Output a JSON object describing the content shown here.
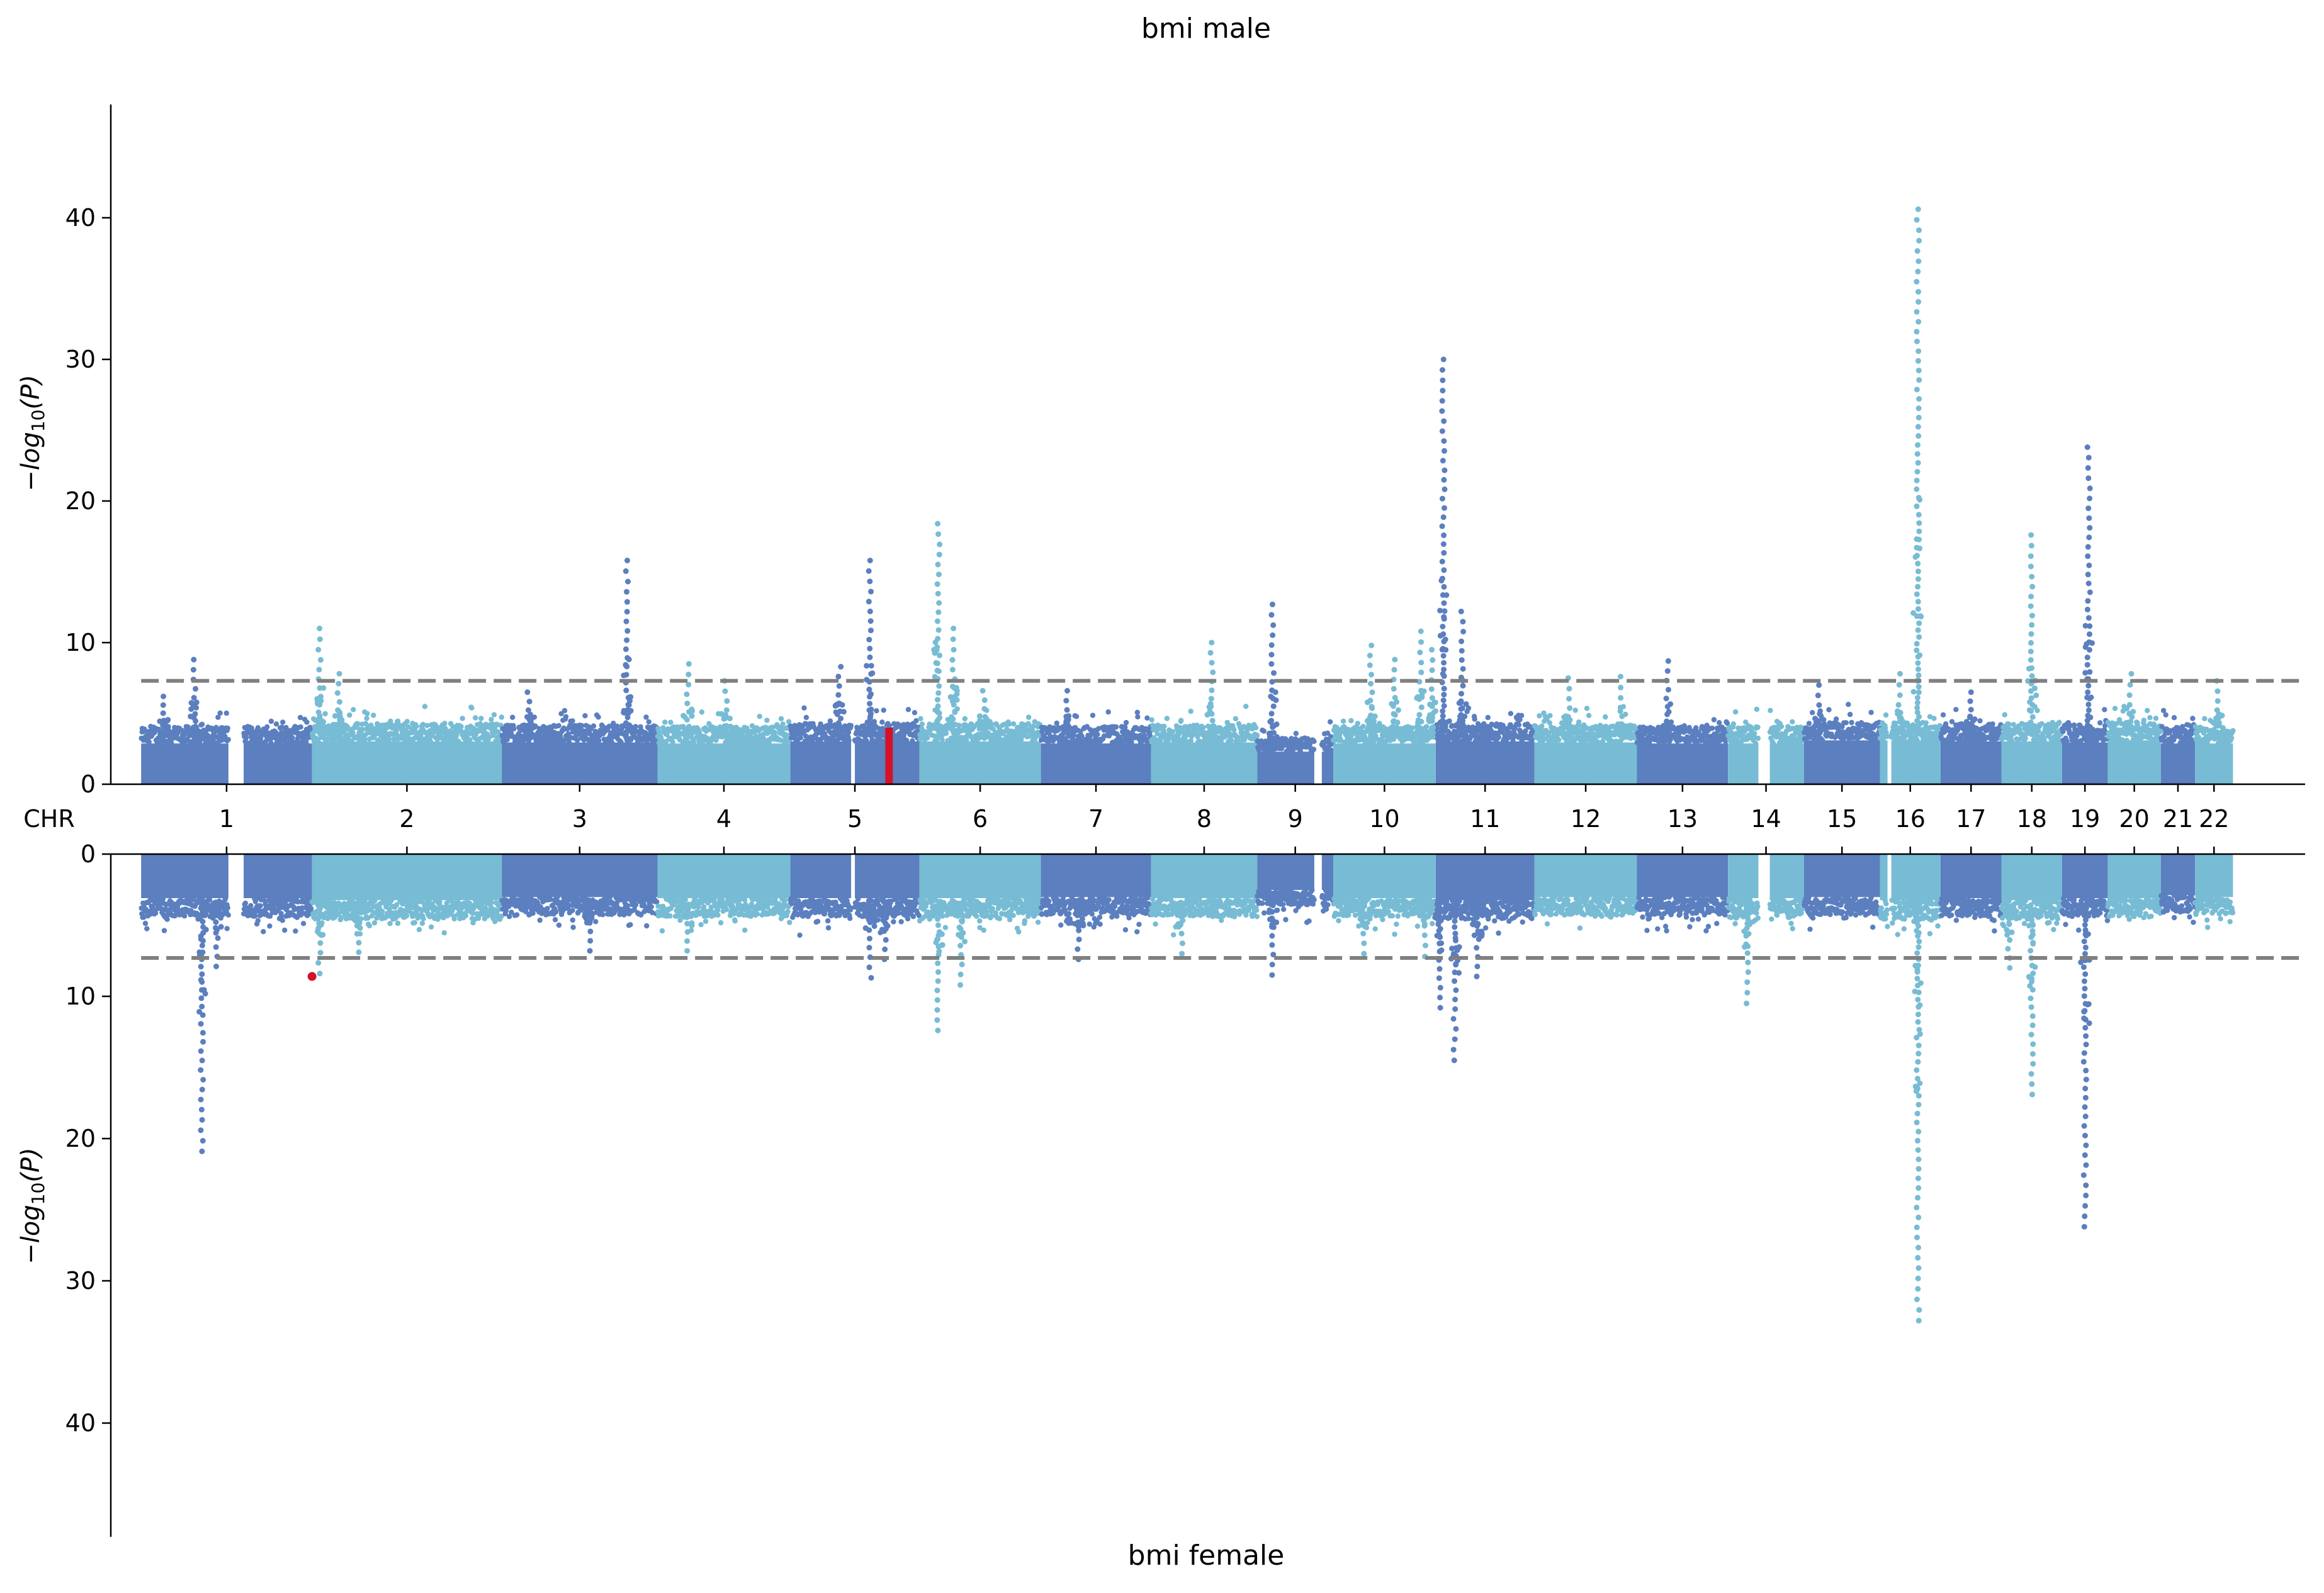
{
  "chart_data": {
    "type": "scatter",
    "title": "bmi male",
    "bottom_title": "bmi female",
    "xlabel": "CHR",
    "ylabel": "−log10(P)",
    "ylim": [
      0,
      48
    ],
    "yticks": [
      0,
      10,
      20,
      30,
      40
    ],
    "threshold": 7.3,
    "threshold_style": "dashed",
    "grid": false,
    "legend": "none",
    "colors": {
      "dark": "#5b7fbf",
      "light": "#77bcd4",
      "highlight": "#d3122a",
      "threshold": "#808080"
    },
    "chromosomes": [
      "1",
      "2",
      "3",
      "4",
      "5",
      "6",
      "7",
      "8",
      "9",
      "10",
      "11",
      "12",
      "13",
      "14",
      "15",
      "16",
      "17",
      "18",
      "19",
      "20",
      "21",
      "22"
    ],
    "chrom_spans": [
      [
        0.4,
        2.65
      ],
      [
        2.65,
        5.15
      ],
      [
        5.15,
        7.2
      ],
      [
        7.2,
        8.95
      ],
      [
        8.95,
        10.65
      ],
      [
        10.65,
        12.25
      ],
      [
        12.25,
        13.7
      ],
      [
        13.7,
        15.1
      ],
      [
        15.1,
        16.1
      ],
      [
        16.1,
        17.45
      ],
      [
        17.45,
        18.75
      ],
      [
        18.75,
        20.1
      ],
      [
        20.1,
        21.3
      ],
      [
        21.3,
        22.3
      ],
      [
        22.3,
        23.3
      ],
      [
        23.3,
        24.1
      ],
      [
        24.1,
        24.9
      ],
      [
        24.9,
        25.7
      ],
      [
        25.7,
        26.3
      ],
      [
        26.3,
        27.0
      ],
      [
        27.0,
        27.45
      ],
      [
        27.45,
        27.95
      ]
    ],
    "chrom_gaps": [
      [
        1.55,
        1.75
      ],
      [
        9.75,
        9.8
      ],
      [
        15.85,
        15.95
      ],
      [
        21.7,
        21.85
      ],
      [
        23.4,
        23.45
      ]
    ],
    "baseline": {
      "top": [
        4.0,
        4.2,
        4.1,
        4.0,
        4.2,
        4.2,
        4.0,
        4.1,
        3.2,
        4.0,
        4.2,
        4.1,
        4.0,
        4.0,
        4.3,
        4.3,
        4.2,
        4.2,
        4.1,
        4.3,
        4.0,
        4.0
      ],
      "bottom": [
        4.3,
        4.5,
        4.2,
        4.3,
        4.3,
        4.3,
        4.2,
        4.3,
        3.5,
        4.3,
        4.5,
        4.2,
        4.2,
        4.3,
        4.2,
        4.5,
        4.3,
        4.5,
        4.3,
        4.3,
        4.0,
        4.2
      ]
    },
    "top_peaks": [
      {
        "chr": "1",
        "x": 1.1,
        "y": 8.8
      },
      {
        "chr": "1",
        "x": 0.7,
        "y": 6.2
      },
      {
        "chr": "2",
        "x": 2.75,
        "y": 11.0
      },
      {
        "chr": "2",
        "x": 3.0,
        "y": 7.8
      },
      {
        "chr": "3",
        "x": 5.5,
        "y": 6.5
      },
      {
        "chr": "3",
        "x": 6.8,
        "y": 15.8
      },
      {
        "chr": "4",
        "x": 7.6,
        "y": 8.5
      },
      {
        "chr": "4",
        "x": 8.1,
        "y": 7.3
      },
      {
        "chr": "5",
        "x": 9.6,
        "y": 8.3
      },
      {
        "chr": "5",
        "x": 10.0,
        "y": 15.8
      },
      {
        "chr": "6",
        "x": 10.9,
        "y": 18.4
      },
      {
        "chr": "6",
        "x": 11.1,
        "y": 11.0
      },
      {
        "chr": "6",
        "x": 11.5,
        "y": 6.6
      },
      {
        "chr": "7",
        "x": 12.6,
        "y": 6.6
      },
      {
        "chr": "8",
        "x": 14.5,
        "y": 10.0
      },
      {
        "chr": "9",
        "x": 15.3,
        "y": 12.7
      },
      {
        "chr": "10",
        "x": 16.6,
        "y": 9.8
      },
      {
        "chr": "10",
        "x": 16.9,
        "y": 8.8
      },
      {
        "chr": "10",
        "x": 17.25,
        "y": 10.8
      },
      {
        "chr": "10",
        "x": 17.4,
        "y": 9.5
      },
      {
        "chr": "11",
        "x": 17.55,
        "y": 30.0
      },
      {
        "chr": "11",
        "x": 17.8,
        "y": 12.2
      },
      {
        "chr": "12",
        "x": 19.2,
        "y": 7.5
      },
      {
        "chr": "12",
        "x": 19.9,
        "y": 7.6
      },
      {
        "chr": "13",
        "x": 20.5,
        "y": 8.7
      },
      {
        "chr": "15",
        "x": 22.5,
        "y": 7.0
      },
      {
        "chr": "16",
        "x": 23.55,
        "y": 7.8
      },
      {
        "chr": "16",
        "x": 23.8,
        "y": 40.6
      },
      {
        "chr": "17",
        "x": 24.5,
        "y": 6.5
      },
      {
        "chr": "18",
        "x": 25.3,
        "y": 17.6
      },
      {
        "chr": "19",
        "x": 26.05,
        "y": 23.8
      },
      {
        "chr": "20",
        "x": 26.6,
        "y": 7.8
      },
      {
        "chr": "22",
        "x": 27.75,
        "y": 7.3
      }
    ],
    "bottom_peaks": [
      {
        "chr": "1",
        "x": 1.2,
        "y": 20.9
      },
      {
        "chr": "1",
        "x": 1.4,
        "y": 7.9
      },
      {
        "chr": "2",
        "x": 2.75,
        "y": 8.4
      },
      {
        "chr": "2",
        "x": 3.25,
        "y": 6.9
      },
      {
        "chr": "3",
        "x": 6.3,
        "y": 6.8
      },
      {
        "chr": "4",
        "x": 7.6,
        "y": 6.8
      },
      {
        "chr": "5",
        "x": 10.0,
        "y": 8.7
      },
      {
        "chr": "5",
        "x": 10.2,
        "y": 7.4
      },
      {
        "chr": "6",
        "x": 10.9,
        "y": 12.4
      },
      {
        "chr": "6",
        "x": 11.2,
        "y": 9.2
      },
      {
        "chr": "7",
        "x": 12.75,
        "y": 7.4
      },
      {
        "chr": "8",
        "x": 14.1,
        "y": 7.0
      },
      {
        "chr": "9",
        "x": 15.3,
        "y": 8.5
      },
      {
        "chr": "10",
        "x": 16.5,
        "y": 7.0
      },
      {
        "chr": "10",
        "x": 17.3,
        "y": 7.2
      },
      {
        "chr": "11",
        "x": 17.5,
        "y": 10.8
      },
      {
        "chr": "11",
        "x": 17.7,
        "y": 14.5
      },
      {
        "chr": "11",
        "x": 18.0,
        "y": 8.6
      },
      {
        "chr": "14",
        "x": 21.55,
        "y": 10.5
      },
      {
        "chr": "16",
        "x": 23.8,
        "y": 32.8
      },
      {
        "chr": "18",
        "x": 25.0,
        "y": 8.0
      },
      {
        "chr": "18",
        "x": 25.3,
        "y": 16.9
      },
      {
        "chr": "19",
        "x": 26.0,
        "y": 26.2
      }
    ],
    "top_highlight": {
      "chr": "5",
      "x": 10.25,
      "y_min": 0,
      "y_max": 4.0
    },
    "bottom_highlight": {
      "chr": "2",
      "x": 2.65,
      "y": 8.6
    }
  }
}
